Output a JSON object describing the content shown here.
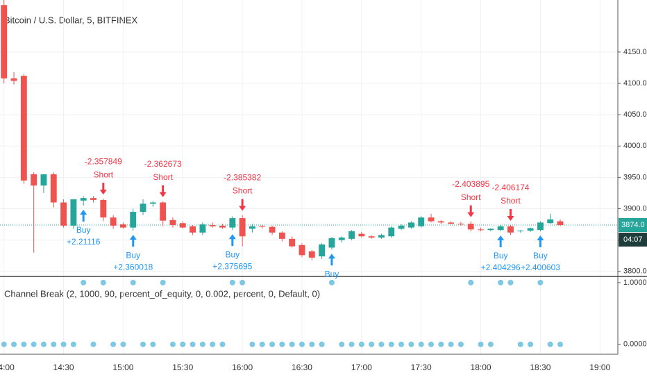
{
  "chart_data": {
    "type": "candlestick",
    "title": "Bitcoin / U.S. Dollar, 5, BITFINEX",
    "up_color": "#26a69a",
    "down_color": "#ef5350",
    "grid": true,
    "x": [
      840,
      845,
      850,
      855,
      860,
      865,
      870,
      875,
      880,
      885,
      890,
      895,
      900,
      905,
      910,
      915,
      920,
      925,
      930,
      935,
      940,
      945,
      950,
      955,
      960,
      965,
      970,
      975,
      980,
      985,
      990,
      995,
      1000,
      1005,
      1010,
      1015,
      1020,
      1025,
      1030,
      1035,
      1040,
      1045,
      1050,
      1055,
      1060,
      1065,
      1070,
      1075,
      1080,
      1085,
      1090,
      1095,
      1100,
      1105,
      1110,
      1115,
      1120
    ],
    "open": [
      4225,
      4108,
      4112,
      3955,
      3937,
      3955,
      3910,
      3873,
      3913,
      3917,
      3914,
      3886,
      3875,
      3870,
      3895,
      3908,
      3910,
      3882,
      3877,
      3872,
      3862,
      3874,
      3873,
      3870,
      3885,
      3868,
      3872,
      3871,
      3862,
      3852,
      3842,
      3832,
      3824,
      3838,
      3850,
      3852,
      3860,
      3856,
      3854,
      3856,
      3868,
      3870,
      3872,
      3886,
      3880,
      3878,
      3876,
      3876,
      3867,
      3866,
      3866,
      3872,
      3864,
      3865,
      3866,
      3877,
      3880
    ],
    "high": [
      4233,
      4118,
      4115,
      3958,
      3952,
      3958,
      3915,
      3912,
      3920,
      3920,
      3916,
      3890,
      3878,
      3900,
      3915,
      3912,
      3912,
      3886,
      3880,
      3874,
      3878,
      3878,
      3876,
      3888,
      3890,
      3876,
      3874,
      3873,
      3864,
      3856,
      3845,
      3834,
      3845,
      3855,
      3856,
      3866,
      3863,
      3858,
      3860,
      3872,
      3875,
      3880,
      3888,
      3892,
      3882,
      3880,
      3879,
      3880,
      3870,
      3869,
      3874,
      3874,
      3866,
      3870,
      3880,
      3892,
      3883
    ],
    "low": [
      4100,
      4098,
      3940,
      3830,
      3925,
      3902,
      3870,
      3868,
      3905,
      3910,
      3880,
      3868,
      3868,
      3865,
      3890,
      3903,
      3872,
      3870,
      3868,
      3858,
      3858,
      3870,
      3868,
      3866,
      3840,
      3862,
      3868,
      3858,
      3848,
      3838,
      3823,
      3818,
      3820,
      3835,
      3846,
      3850,
      3854,
      3852,
      3852,
      3854,
      3866,
      3868,
      3870,
      3878,
      3876,
      3875,
      3873,
      3864,
      3864,
      3864,
      3864,
      3858,
      3862,
      3863,
      3864,
      3876,
      3872
    ],
    "close": [
      4108,
      4104,
      3945,
      3937,
      3955,
      3910,
      3873,
      3915,
      3917,
      3914,
      3886,
      3873,
      3870,
      3895,
      3908,
      3910,
      3881,
      3874,
      3870,
      3862,
      3875,
      3872,
      3870,
      3885,
      3856,
      3872,
      3871,
      3862,
      3852,
      3840,
      3826,
      3822,
      3843,
      3853,
      3854,
      3864,
      3856,
      3854,
      3858,
      3870,
      3873,
      3878,
      3886,
      3880,
      3878,
      3876,
      3875,
      3867,
      3866,
      3868,
      3872,
      3862,
      3865,
      3869,
      3878,
      3883,
      3874
    ],
    "xlim": [
      838,
      1149
    ],
    "xticks": [
      {
        "value": 840,
        "label": "14:00"
      },
      {
        "value": 870,
        "label": "14:30"
      },
      {
        "value": 900,
        "label": "15:00"
      },
      {
        "value": 930,
        "label": "15:30"
      },
      {
        "value": 960,
        "label": "16:00"
      },
      {
        "value": 990,
        "label": "16:30"
      },
      {
        "value": 1020,
        "label": "17:00"
      },
      {
        "value": 1050,
        "label": "17:30"
      },
      {
        "value": 1080,
        "label": "18:00"
      },
      {
        "value": 1110,
        "label": "18:30"
      },
      {
        "value": 1140,
        "label": "19:00"
      }
    ],
    "ylim": [
      3792,
      4233
    ],
    "yticks": [
      {
        "value": 3800,
        "label": "3800.0"
      },
      {
        "value": 3850,
        "label": "3850.0"
      },
      {
        "value": 3900,
        "label": "3900.0"
      },
      {
        "value": 3950,
        "label": "3950.0"
      },
      {
        "value": 4000,
        "label": "4000.0"
      },
      {
        "value": 4050,
        "label": "4050.0"
      },
      {
        "value": 4100,
        "label": "4100.0"
      },
      {
        "value": 4150,
        "label": "4150.0"
      }
    ],
    "last_price": {
      "value": 3874,
      "label": "3874.0",
      "countdown": "04:07"
    },
    "signal_colors": {
      "buy": "#2196f3",
      "short": "#f23645"
    },
    "signals": [
      {
        "side": "buy",
        "x": 880,
        "text": [
          "Buy",
          "+2.21116"
        ]
      },
      {
        "side": "short",
        "x": 890,
        "text": [
          "-2.357849",
          "Short"
        ]
      },
      {
        "side": "buy",
        "x": 905,
        "text": [
          "Buy",
          "+2.360018"
        ]
      },
      {
        "side": "short",
        "x": 920,
        "text": [
          "-2.362673",
          "Short"
        ]
      },
      {
        "side": "buy",
        "x": 955,
        "text": [
          "Buy",
          "+2.375695"
        ]
      },
      {
        "side": "short",
        "x": 960,
        "text": [
          "-2.385382",
          "Short"
        ]
      },
      {
        "side": "buy",
        "x": 1005,
        "text": [
          "Buy"
        ]
      },
      {
        "side": "short",
        "x": 1075,
        "text": [
          "-2.403895",
          "Short"
        ]
      },
      {
        "side": "buy",
        "x": 1090,
        "text": [
          "Buy",
          "+2.404296"
        ]
      },
      {
        "side": "short",
        "x": 1095,
        "text": [
          "-2.406174",
          "Short"
        ]
      },
      {
        "side": "buy",
        "x": 1110,
        "text": [
          "Buy",
          "+2.400603"
        ]
      }
    ],
    "indicator": {
      "title": "Channel Break (2, 1000, 90, percent_of_equity, 0, 0.002, percent, 0, Default, 0)",
      "color": "#7ec8e3",
      "ylim": [
        -0.16,
        1.1
      ],
      "yticks": [
        {
          "value": 1,
          "label": "1.0000"
        },
        {
          "value": 0,
          "label": "0.0000"
        }
      ],
      "values": [
        0,
        0,
        0,
        0,
        0,
        0,
        0,
        0,
        1,
        0,
        1,
        0,
        0,
        1,
        0,
        0,
        1,
        0,
        0,
        0,
        0,
        0,
        0,
        1,
        1,
        0,
        0,
        0,
        0,
        0,
        0,
        0,
        0,
        1,
        0,
        0,
        0,
        0,
        0,
        0,
        0,
        0,
        0,
        0,
        0,
        0,
        0,
        1,
        0,
        0,
        1,
        1,
        0,
        0,
        1,
        0,
        0
      ]
    }
  }
}
